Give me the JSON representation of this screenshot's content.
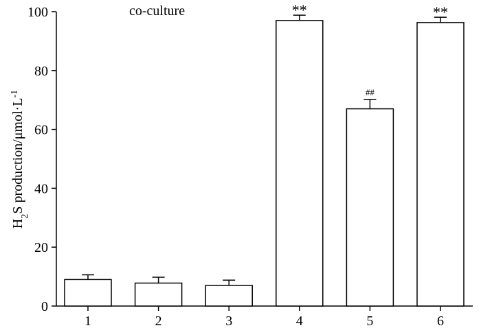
{
  "chart_data": {
    "type": "bar",
    "title": "co-culture",
    "ylabel": {
      "prefix": "H",
      "sub": "2",
      "middle": "S production/μmol·L",
      "sup": "-1"
    },
    "ylim": [
      0,
      100
    ],
    "yticks": [
      "0",
      "20",
      "40",
      "60",
      "80",
      "100"
    ],
    "categories": [
      "1",
      "2",
      "3",
      "4",
      "5",
      "6"
    ],
    "values": [
      9,
      7.8,
      7,
      97,
      67,
      96.3
    ],
    "errors": [
      1.6,
      2,
      1.8,
      1.8,
      3.2,
      1.8
    ],
    "annotations": [
      "",
      "",
      "",
      "**",
      "##",
      "**"
    ],
    "grid": false,
    "bar_fill": "#ffffff",
    "bar_stroke": "#000000"
  }
}
